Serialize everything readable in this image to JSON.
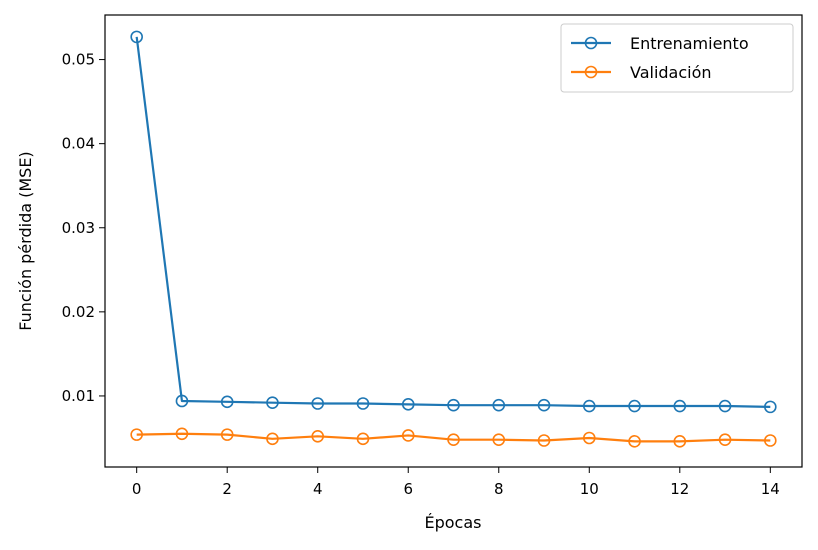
{
  "chart_data": {
    "type": "line",
    "title": "",
    "xlabel": "Épocas",
    "ylabel": "Función pérdida (MSE)",
    "xlim": [
      -0.7,
      14.7
    ],
    "ylim": [
      0.00155,
      0.0553
    ],
    "xticks": [
      0,
      2,
      4,
      6,
      8,
      10,
      12,
      14
    ],
    "yticks": [
      0.01,
      0.02,
      0.03,
      0.04,
      0.05
    ],
    "ytick_labels": [
      "0.01",
      "0.02",
      "0.03",
      "0.04",
      "0.05"
    ],
    "grid": false,
    "legend": "top-right",
    "marker": "hollow-circle",
    "x": [
      0,
      1,
      2,
      3,
      4,
      5,
      6,
      7,
      8,
      9,
      10,
      11,
      12,
      13,
      14
    ],
    "series": [
      {
        "name": "Entrenamiento",
        "color": "#1f77b4",
        "values": [
          0.0527,
          0.0094,
          0.0093,
          0.0092,
          0.0091,
          0.0091,
          0.009,
          0.0089,
          0.0089,
          0.0089,
          0.0088,
          0.0088,
          0.0088,
          0.0088,
          0.0087
        ]
      },
      {
        "name": "Validación",
        "color": "#ff7f0e",
        "values": [
          0.0054,
          0.0055,
          0.0054,
          0.0049,
          0.0052,
          0.0049,
          0.0053,
          0.0048,
          0.0048,
          0.0047,
          0.005,
          0.0046,
          0.0046,
          0.0048,
          0.0047
        ]
      }
    ]
  }
}
